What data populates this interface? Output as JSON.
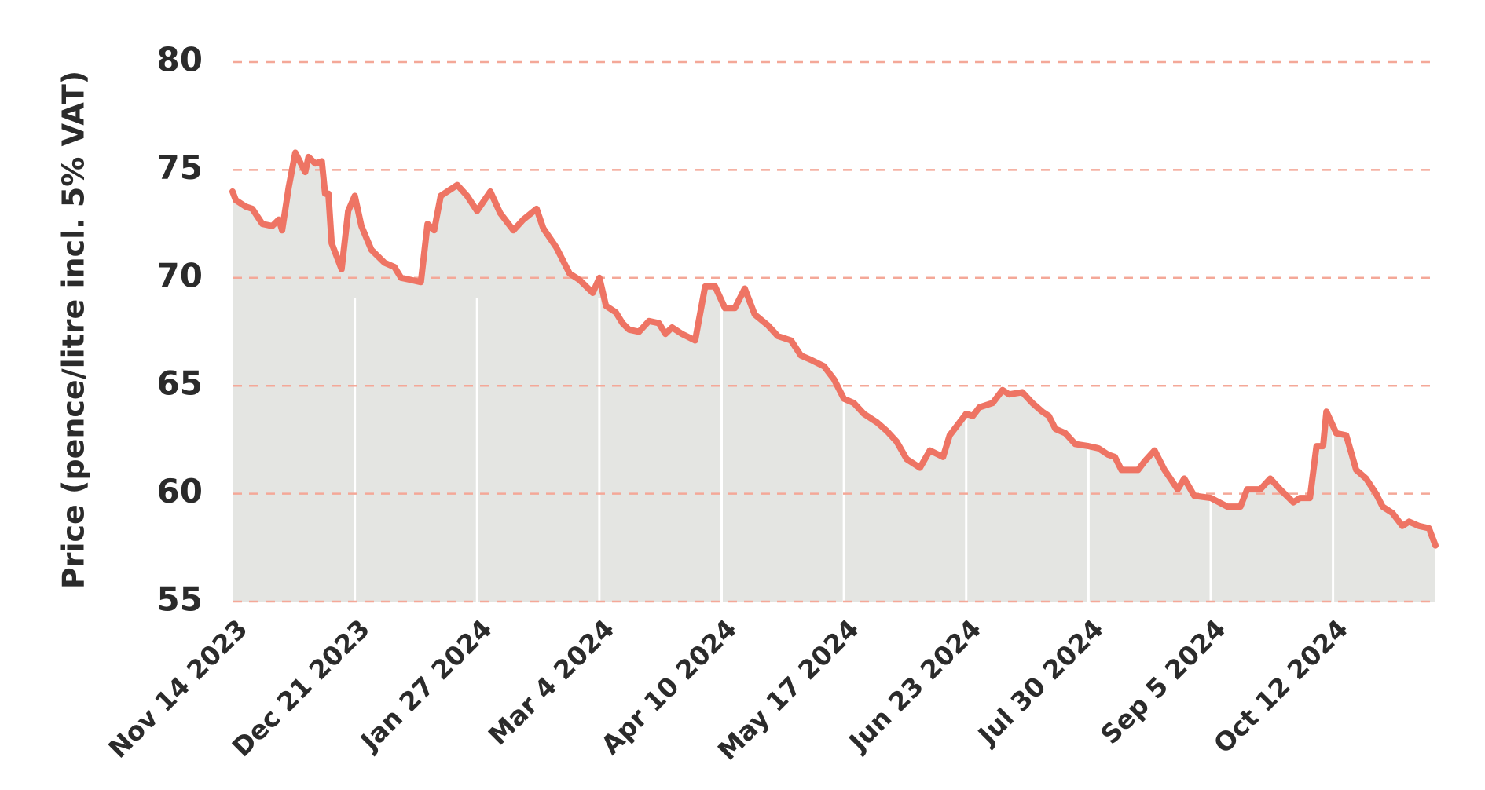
{
  "chart_data": {
    "type": "line",
    "y_label": "Price (pence/litre incl. 5% VAT)",
    "color": "#ee7464",
    "area_color": "#e4e5e2",
    "grid": true,
    "x": [
      "2023-11-14",
      "2023-11-15",
      "2023-11-18",
      "2023-11-20",
      "2023-11-23",
      "2023-11-26",
      "2023-11-28",
      "2023-11-29",
      "2023-12-01",
      "2023-12-03",
      "2023-12-06",
      "2023-12-07",
      "2023-12-09",
      "2023-12-11",
      "2023-12-12",
      "2023-12-13",
      "2023-12-14",
      "2023-12-17",
      "2023-12-19",
      "2023-12-21",
      "2023-12-23",
      "2023-12-26",
      "2023-12-30",
      "2024-01-02",
      "2024-01-04",
      "2024-01-07",
      "2024-01-10",
      "2024-01-12",
      "2024-01-14",
      "2024-01-16",
      "2024-01-19",
      "2024-01-21",
      "2024-01-24",
      "2024-01-27",
      "2024-01-31",
      "2024-02-03",
      "2024-02-07",
      "2024-02-10",
      "2024-02-14",
      "2024-02-16",
      "2024-02-20",
      "2024-02-24",
      "2024-02-27",
      "2024-03-02",
      "2024-03-04",
      "2024-03-06",
      "2024-03-09",
      "2024-03-11",
      "2024-03-13",
      "2024-03-16",
      "2024-03-19",
      "2024-03-22",
      "2024-03-24",
      "2024-03-26",
      "2024-03-29",
      "2024-04-02",
      "2024-04-05",
      "2024-04-08",
      "2024-04-11",
      "2024-04-14",
      "2024-04-17",
      "2024-04-20",
      "2024-04-24",
      "2024-04-27",
      "2024-05-01",
      "2024-05-04",
      "2024-05-07",
      "2024-05-11",
      "2024-05-14",
      "2024-05-17",
      "2024-05-20",
      "2024-05-23",
      "2024-05-27",
      "2024-05-30",
      "2024-06-02",
      "2024-06-05",
      "2024-06-09",
      "2024-06-12",
      "2024-06-16",
      "2024-06-18",
      "2024-06-21",
      "2024-06-23",
      "2024-06-25",
      "2024-06-27",
      "2024-07-01",
      "2024-07-03",
      "2024-07-04",
      "2024-07-06",
      "2024-07-10",
      "2024-07-13",
      "2024-07-16",
      "2024-07-18",
      "2024-07-20",
      "2024-07-23",
      "2024-07-26",
      "2024-07-30",
      "2024-08-02",
      "2024-08-05",
      "2024-08-07",
      "2024-08-09",
      "2024-08-14",
      "2024-08-16",
      "2024-08-19",
      "2024-08-22",
      "2024-08-26",
      "2024-08-28",
      "2024-08-31",
      "2024-09-05",
      "2024-09-10",
      "2024-09-14",
      "2024-09-16",
      "2024-09-20",
      "2024-09-23",
      "2024-09-26",
      "2024-09-30",
      "2024-10-02",
      "2024-10-05",
      "2024-10-07",
      "2024-10-09",
      "2024-10-10",
      "2024-10-13",
      "2024-10-16",
      "2024-10-19",
      "2024-10-22",
      "2024-10-25",
      "2024-10-27",
      "2024-10-30",
      "2024-11-02",
      "2024-11-04",
      "2024-11-07",
      "2024-11-10",
      "2024-11-12"
    ],
    "values": [
      74.0,
      73.6,
      73.3,
      73.2,
      72.5,
      72.4,
      72.7,
      72.2,
      74.2,
      75.8,
      74.9,
      75.6,
      75.3,
      75.4,
      73.9,
      73.9,
      71.6,
      70.4,
      73.1,
      73.8,
      72.4,
      71.3,
      70.7,
      70.5,
      70.0,
      69.9,
      69.8,
      72.5,
      72.2,
      73.8,
      74.1,
      74.3,
      73.8,
      73.1,
      74.0,
      73.0,
      72.2,
      72.7,
      73.2,
      72.3,
      71.4,
      70.2,
      69.9,
      69.3,
      70.0,
      68.7,
      68.4,
      67.9,
      67.6,
      67.5,
      68.0,
      67.9,
      67.4,
      67.7,
      67.4,
      67.1,
      69.6,
      69.6,
      68.6,
      68.6,
      69.5,
      68.3,
      67.8,
      67.3,
      67.1,
      66.4,
      66.2,
      65.9,
      65.3,
      64.4,
      64.2,
      63.7,
      63.3,
      62.9,
      62.4,
      61.6,
      61.2,
      62.0,
      61.7,
      62.7,
      63.3,
      63.7,
      63.6,
      64.0,
      64.2,
      64.6,
      64.8,
      64.6,
      64.7,
      64.2,
      63.8,
      63.6,
      63.0,
      62.8,
      62.3,
      62.2,
      62.1,
      61.8,
      61.7,
      61.1,
      61.1,
      61.5,
      62.0,
      61.1,
      60.2,
      60.7,
      59.9,
      59.8,
      59.4,
      59.4,
      60.2,
      60.2,
      60.7,
      60.2,
      59.6,
      59.8,
      59.8,
      62.2,
      62.2,
      63.8,
      62.8,
      62.7,
      61.1,
      60.7,
      60.0,
      59.4,
      59.1,
      58.5,
      58.7,
      58.5,
      58.4,
      57.6
    ],
    "xlim": [
      "2023-11-14",
      "2024-11-12"
    ],
    "xticks": [
      {
        "value": "2023-11-14",
        "label": "Nov 14 2023"
      },
      {
        "value": "2023-12-21",
        "label": "Dec 21 2023"
      },
      {
        "value": "2024-01-27",
        "label": "Jan 27 2024"
      },
      {
        "value": "2024-03-04",
        "label": "Mar 4 2024"
      },
      {
        "value": "2024-04-10",
        "label": "Apr 10 2024"
      },
      {
        "value": "2024-05-17",
        "label": "May 17 2024"
      },
      {
        "value": "2024-06-23",
        "label": "Jun 23 2024"
      },
      {
        "value": "2024-07-30",
        "label": "Jul 30 2024"
      },
      {
        "value": "2024-09-05",
        "label": "Sep 5 2024"
      },
      {
        "value": "2024-10-12",
        "label": "Oct 12 2024"
      }
    ],
    "ylim": [
      55,
      80
    ],
    "yticks": [
      55,
      60,
      65,
      70,
      75,
      80
    ]
  }
}
